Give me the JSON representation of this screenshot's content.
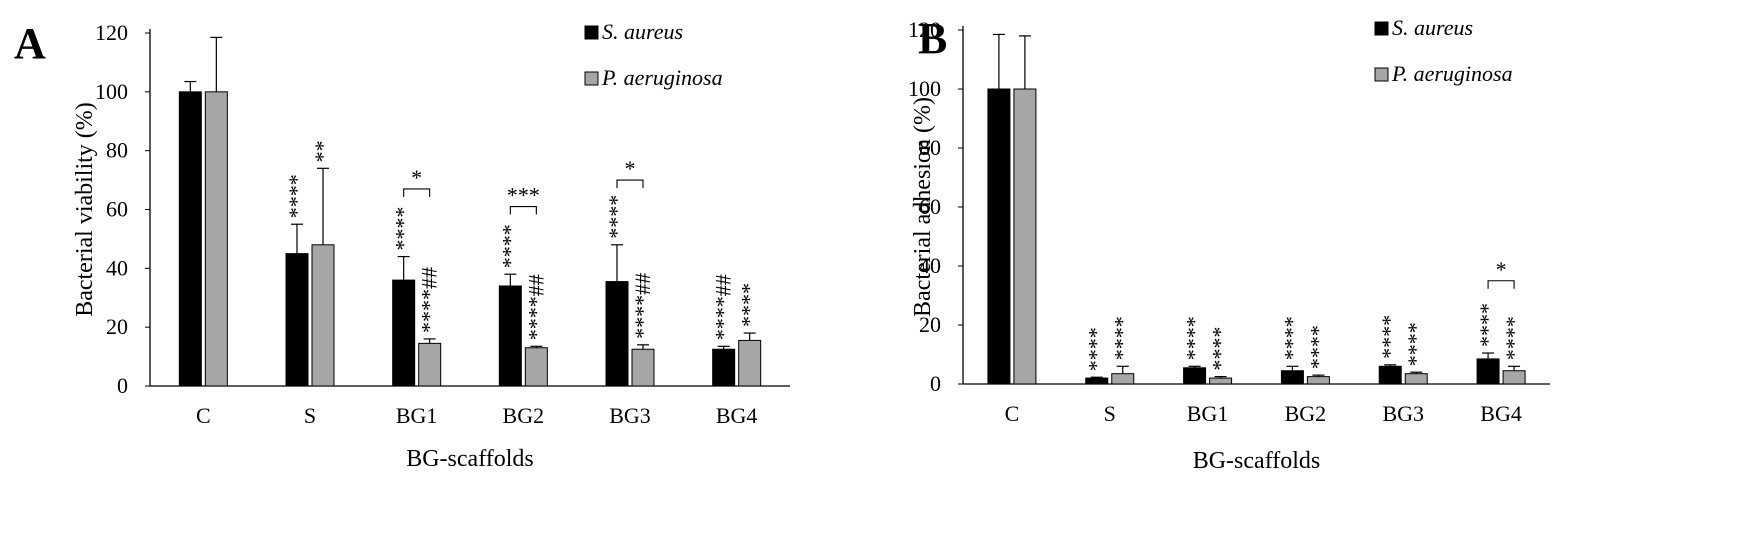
{
  "colors": {
    "s_aureus": "#000000",
    "p_aeruginosa": "#a6a6a6",
    "axis": "#000000"
  },
  "chart_data": [
    {
      "type": "bar",
      "panel_label": "A",
      "title": "",
      "xlabel": "BG-scaffolds",
      "ylabel": "Bacterial viability (%)",
      "ylim": [
        0,
        120
      ],
      "yticks": [
        "0",
        "20",
        "40",
        "60",
        "80",
        "100",
        "120"
      ],
      "categories": [
        "C",
        "S",
        "BG1",
        "BG2",
        "BG3",
        "BG4"
      ],
      "legend_position": "top-right",
      "grid": false,
      "series": [
        {
          "name": "S. aureus",
          "values": [
            100,
            45,
            36,
            34,
            35.5,
            12.5
          ],
          "errors": [
            3.5,
            10,
            8,
            4,
            12.5,
            1
          ]
        },
        {
          "name": "P. aeruginosa",
          "values": [
            100,
            48,
            14.5,
            13,
            12.5,
            15.5
          ],
          "errors": [
            18.5,
            26,
            1.5,
            0.5,
            1.5,
            2.5
          ]
        }
      ],
      "annotations": [
        {
          "category": "S",
          "series": 0,
          "text": "****"
        },
        {
          "category": "S",
          "series": 1,
          "text": "**"
        },
        {
          "category": "BG1",
          "series": 0,
          "text": "****"
        },
        {
          "category": "BG1",
          "series": 1,
          "text": "****##"
        },
        {
          "category": "BG2",
          "series": 0,
          "text": "****"
        },
        {
          "category": "BG2",
          "series": 1,
          "text": "****##"
        },
        {
          "category": "BG3",
          "series": 0,
          "text": "****"
        },
        {
          "category": "BG3",
          "series": 1,
          "text": "****##"
        },
        {
          "category": "BG4",
          "series": 0,
          "text": "****##"
        },
        {
          "category": "BG4",
          "series": 1,
          "text": "****"
        }
      ],
      "brackets": [
        {
          "category": "BG1",
          "text": "*",
          "level": 67
        },
        {
          "category": "BG2",
          "text": "***",
          "level": 61
        },
        {
          "category": "BG3",
          "text": "*",
          "level": 70
        }
      ]
    },
    {
      "type": "bar",
      "panel_label": "B",
      "title": "",
      "xlabel": "BG-scaffolds",
      "ylabel": "Bacterial adhesion (%)",
      "ylim": [
        0,
        120
      ],
      "yticks": [
        "0",
        "20",
        "40",
        "60",
        "80",
        "100",
        "120"
      ],
      "categories": [
        "C",
        "S",
        "BG1",
        "BG2",
        "BG3",
        "BG4"
      ],
      "legend_position": "top-right",
      "grid": false,
      "series": [
        {
          "name": "S. aureus",
          "values": [
            100,
            2,
            5.5,
            4.5,
            6,
            8.5
          ],
          "errors": [
            18.5,
            0.3,
            0.5,
            1.5,
            0.5,
            2
          ]
        },
        {
          "name": "P. aeruginosa",
          "values": [
            100,
            3.5,
            2,
            2.5,
            3.5,
            4.5
          ],
          "errors": [
            18,
            2.5,
            0.5,
            0.5,
            0.5,
            1.5
          ]
        }
      ],
      "annotations": [
        {
          "category": "S",
          "series": 0,
          "text": "****"
        },
        {
          "category": "S",
          "series": 1,
          "text": "****"
        },
        {
          "category": "BG1",
          "series": 0,
          "text": "****"
        },
        {
          "category": "BG1",
          "series": 1,
          "text": "****"
        },
        {
          "category": "BG2",
          "series": 0,
          "text": "****"
        },
        {
          "category": "BG2",
          "series": 1,
          "text": "****"
        },
        {
          "category": "BG3",
          "series": 0,
          "text": "****"
        },
        {
          "category": "BG3",
          "series": 1,
          "text": "****"
        },
        {
          "category": "BG4",
          "series": 0,
          "text": "****"
        },
        {
          "category": "BG4",
          "series": 1,
          "text": "****"
        }
      ],
      "brackets": [
        {
          "category": "BG4",
          "text": "*",
          "level": 35
        }
      ]
    }
  ]
}
